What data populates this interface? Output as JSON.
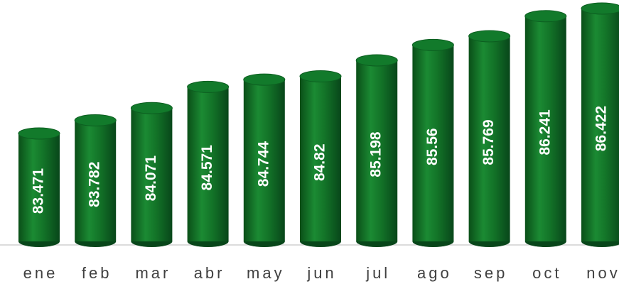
{
  "chart_data": {
    "type": "bar",
    "categories": [
      "ene",
      "feb",
      "mar",
      "abr",
      "may",
      "jun",
      "jul",
      "ago",
      "sep",
      "oct",
      "nov"
    ],
    "values": [
      83.471,
      83.782,
      84.071,
      84.571,
      84.744,
      84.82,
      85.198,
      85.56,
      85.769,
      86.241,
      86.422
    ],
    "color": "#127a2b"
  }
}
